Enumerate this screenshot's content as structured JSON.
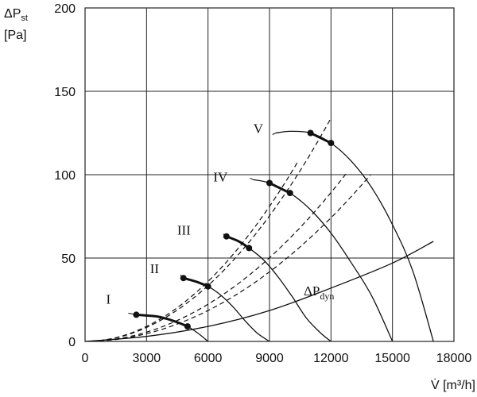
{
  "chart_data": {
    "type": "line",
    "title": "",
    "ylabel_line1": "ΔP",
    "ylabel_sub": "st",
    "ylabel_line2": "[Pa]",
    "xlabel": "V̇ [m³/h]",
    "xlim": [
      0,
      18000
    ],
    "ylim": [
      0,
      200
    ],
    "x_ticks": [
      0,
      3000,
      6000,
      9000,
      12000,
      15000,
      18000
    ],
    "y_ticks": [
      0,
      50,
      100,
      150,
      200
    ],
    "grid": true,
    "fan_curves": [
      {
        "name": "I",
        "points": [
          [
            2500,
            16
          ],
          [
            3000,
            15.5
          ],
          [
            3500,
            15
          ],
          [
            4000,
            13.5
          ],
          [
            4500,
            11.5
          ],
          [
            5000,
            9
          ],
          [
            5500,
            5
          ],
          [
            6000,
            0
          ]
        ],
        "bold_range": [
          2500,
          5000
        ]
      },
      {
        "name": "II",
        "points": [
          [
            4800,
            38
          ],
          [
            5500,
            35.5
          ],
          [
            6000,
            33
          ],
          [
            6600,
            28
          ],
          [
            7200,
            21
          ],
          [
            7800,
            12.5
          ],
          [
            8400,
            5
          ],
          [
            9000,
            0
          ]
        ],
        "bold_range": [
          4800,
          6000
        ]
      },
      {
        "name": "III",
        "points": [
          [
            6900,
            63
          ],
          [
            7500,
            60
          ],
          [
            8000,
            56
          ],
          [
            8700,
            49
          ],
          [
            9400,
            39
          ],
          [
            10100,
            27
          ],
          [
            10800,
            14
          ],
          [
            11500,
            5
          ],
          [
            12000,
            0
          ]
        ],
        "bold_range": [
          6900,
          8000
        ]
      },
      {
        "name": "IV",
        "points": [
          [
            8200,
            97
          ],
          [
            9000,
            95
          ],
          [
            10000,
            89
          ],
          [
            11000,
            79
          ],
          [
            12000,
            65
          ],
          [
            13000,
            47
          ],
          [
            14000,
            27
          ],
          [
            15000,
            0
          ]
        ],
        "bold_range": [
          9000,
          10000
        ]
      },
      {
        "name": "V",
        "points": [
          [
            9300,
            125
          ],
          [
            10000,
            126
          ],
          [
            11000,
            125
          ],
          [
            12000,
            119
          ],
          [
            13000,
            108
          ],
          [
            14000,
            92
          ],
          [
            15000,
            70
          ],
          [
            16000,
            42
          ],
          [
            17000,
            0
          ]
        ],
        "bold_range": [
          11000,
          12000
        ]
      }
    ],
    "system_curves": [
      {
        "k": 1.0,
        "x_end": 10400
      },
      {
        "k": 0.93,
        "x_end": 12000
      },
      {
        "k": 0.62,
        "x_end": 12700
      },
      {
        "k": 0.515,
        "x_end": 13900
      }
    ],
    "system_curve_exponent": 2,
    "dynamic_pressure": {
      "label_main": "ΔP",
      "label_sub": "dyn",
      "points": [
        [
          0,
          0
        ],
        [
          3000,
          3
        ],
        [
          6000,
          9
        ],
        [
          9000,
          18.5
        ],
        [
          12000,
          32
        ],
        [
          15000,
          47
        ],
        [
          17000,
          60
        ]
      ]
    }
  }
}
